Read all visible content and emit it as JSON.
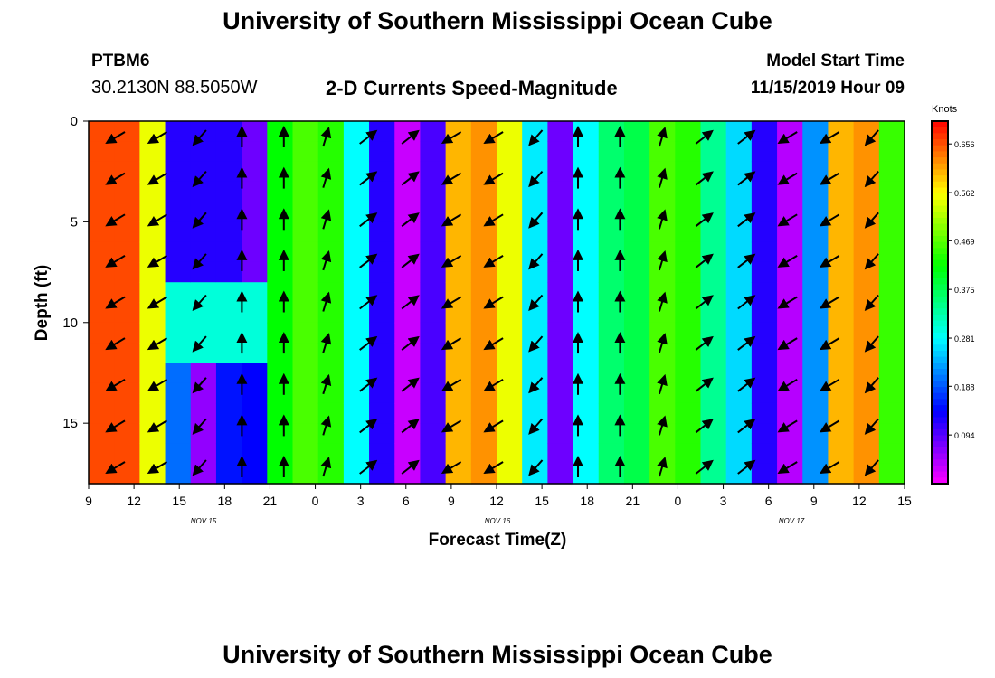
{
  "header": {
    "title": "University of Southern Mississippi Ocean Cube",
    "station": "PTBM6",
    "coords": "30.2130N 88.5050W",
    "subtitle": "2-D Currents Speed-Magnitude",
    "model_label": "Model Start Time",
    "model_time": "11/15/2019 Hour 09"
  },
  "footer": {
    "title": "University of Southern Mississippi Ocean Cube"
  },
  "chart_data": {
    "type": "heatmap",
    "xlabel": "Forecast Time(Z)",
    "ylabel": "Depth (ft)",
    "colorbar_label": "Knots",
    "colorbar_ticks": [
      0.656,
      0.562,
      0.469,
      0.375,
      0.281,
      0.188,
      0.094
    ],
    "x_tick_labels": [
      "9",
      "12",
      "15",
      "18",
      "21",
      "0",
      "3",
      "6",
      "9",
      "12",
      "15",
      "18",
      "21",
      "0",
      "3",
      "6",
      "9",
      "12",
      "15"
    ],
    "date_labels": [
      "NOV 15",
      "NOV 16",
      "NOV 17"
    ],
    "y_ticks": [
      0,
      5,
      10,
      15
    ],
    "ylim": [
      0,
      18
    ],
    "color_range": [
      0,
      0.7
    ],
    "speed_by_time": [
      0.66,
      0.66,
      0.55,
      0.2,
      0.06,
      0.15,
      0.14,
      0.42,
      0.46,
      0.44,
      0.28,
      0.12,
      0.03,
      0.1,
      0.6,
      0.62,
      0.55,
      0.27,
      0.08,
      0.28,
      0.36,
      0.38,
      0.46,
      0.44,
      0.34,
      0.26,
      0.12,
      0.04,
      0.22,
      0.6,
      0.62,
      0.45
    ],
    "speed_top_depth_override": {
      "columns": [
        3,
        4,
        5,
        6
      ],
      "values": [
        0.12,
        0.12,
        0.12,
        0.08
      ]
    },
    "arrows_note": "current direction vectors at hourly columns, shown as arrows"
  }
}
